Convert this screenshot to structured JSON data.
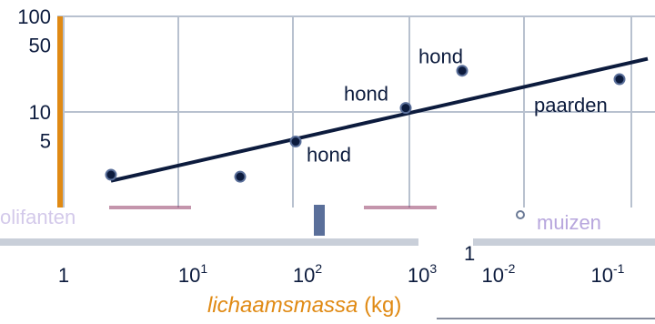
{
  "chart_data": {
    "type": "scatter",
    "title": "",
    "xlabel": "lichaamsmassa (kg)",
    "xlabel_parts": {
      "main": "lichaamsmassa",
      "unit": "(kg)"
    },
    "ylabel": "",
    "y_scale": "log",
    "ylim": [
      1,
      100
    ],
    "y_ticks": [
      "100",
      "50",
      "10",
      "5"
    ],
    "x_ticks": [
      {
        "base": "1",
        "exp": ""
      },
      {
        "base": "10",
        "exp": "1"
      },
      {
        "base": "10",
        "exp": "2"
      },
      {
        "base": "10",
        "exp": "3"
      },
      {
        "base": "10",
        "exp": "-2"
      },
      {
        "base": "10",
        "exp": "-1"
      }
    ],
    "stray_label": "1",
    "grid": true,
    "points": [
      {
        "label": "",
        "x": 1.8,
        "y": 2.2
      },
      {
        "label": "",
        "x": 20,
        "y": 2.1
      },
      {
        "label": "hond",
        "x": 80,
        "y": 4.9
      },
      {
        "label": "hond",
        "x": 800,
        "y": 11
      },
      {
        "label": "hond",
        "x": 3000,
        "y": 27
      },
      {
        "label": "paarden",
        "x": 20000,
        "y": 22
      }
    ],
    "trendline": {
      "x": [
        1.8,
        30000
      ],
      "y": [
        1.9,
        36
      ]
    },
    "overlay_labels": [
      {
        "text": "olifanten"
      },
      {
        "text": "muizen"
      }
    ],
    "colors": {
      "axis": "#e08a14",
      "grid": "#b8c1cf",
      "marks": "#0c1b3d",
      "xlabel": "#e08a14"
    }
  }
}
